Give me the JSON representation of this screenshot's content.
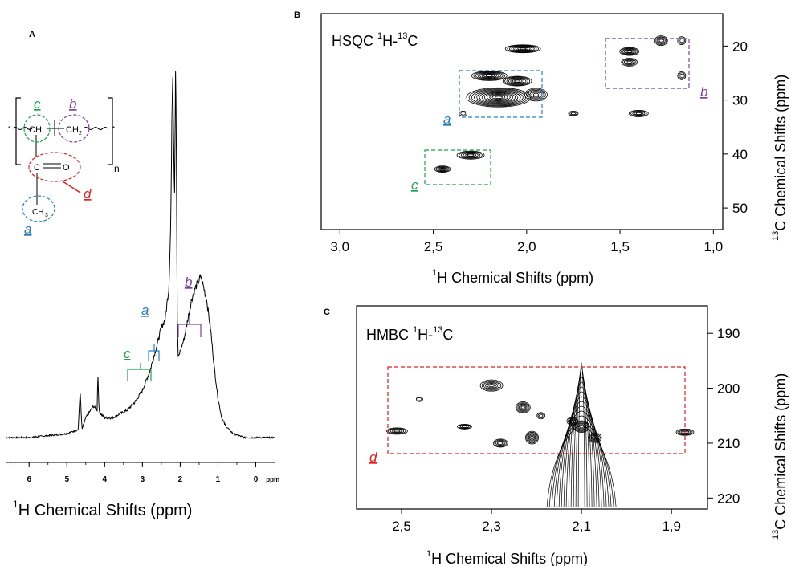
{
  "panel_a": {
    "letter": "A",
    "x_ticks": [
      "6",
      "5",
      "4",
      "3",
      "2",
      "1",
      "0",
      "ppm"
    ],
    "xlabel_sup": "1",
    "xlabel": "H Chemical Shifts (ppm)",
    "assign_a": "a",
    "assign_b": "b",
    "assign_c": "c",
    "structure": {
      "ch": "CH",
      "ch2": "CH",
      "ch2_sub": "2",
      "c": "C",
      "o": "O",
      "ch3": "CH",
      "ch3_sub": "3",
      "n": "n",
      "label_a": "a",
      "label_b": "b",
      "label_c": "c",
      "label_d": "d"
    }
  },
  "panel_b": {
    "letter": "B",
    "title_pre": "HSQC ",
    "title_sup1": "1",
    "title_mid": "H-",
    "title_sup2": "13",
    "title_post": "C",
    "x_ticks": [
      "3,0",
      "2,5",
      "2,0",
      "1,5",
      "1,0"
    ],
    "y_ticks": [
      "20",
      "30",
      "40",
      "50"
    ],
    "xlabel_sup": "1",
    "xlabel": "H Chemical Shifts (ppm)",
    "ylabel_sup": "13",
    "ylabel": "C Chemical Shifts (ppm)",
    "box_a": "a",
    "box_b": "b",
    "box_c": "c"
  },
  "panel_c": {
    "letter": "C",
    "title_pre": "HMBC ",
    "title_sup1": "1",
    "title_mid": "H-",
    "title_sup2": "13",
    "title_post": "C",
    "x_ticks": [
      "2,5",
      "2,3",
      "2,1",
      "1,9"
    ],
    "y_ticks": [
      "190",
      "200",
      "210",
      "220"
    ],
    "xlabel_sup": "1",
    "xlabel": "H Chemical Shifts (ppm)",
    "ylabel_sup": "13",
    "ylabel": "C Chemical Shifts (ppm)",
    "box_d": "d"
  },
  "colors": {
    "a": "#2a7fc0",
    "b": "#7b3f9e",
    "c": "#1aa54b",
    "d": "#e02020",
    "line": "#000000"
  },
  "chart_data": [
    {
      "type": "line",
      "panel": "A",
      "xlabel": "1H Chemical Shifts (ppm)",
      "xlim": [
        6.6,
        -0.5
      ],
      "x_reversed": true,
      "series": [
        {
          "x": [
            6.6,
            6.0,
            5.5,
            5.0,
            4.7,
            4.65,
            4.6,
            4.5,
            4.3,
            4.2,
            4.18,
            4.15,
            4.1,
            4.0,
            3.8,
            3.6,
            3.4,
            3.2,
            3.0,
            2.8,
            2.6,
            2.5,
            2.4,
            2.3,
            2.25,
            2.2,
            2.15,
            2.12,
            2.1,
            2.08,
            2.05,
            2.0,
            1.9,
            1.8,
            1.7,
            1.6,
            1.5,
            1.45,
            1.4,
            1.3,
            1.2,
            1.1,
            1.0,
            0.9,
            0.8,
            0.6,
            0.3,
            0.0,
            -0.5
          ],
          "y": [
            0.0,
            0.0,
            0.005,
            0.01,
            0.02,
            0.12,
            0.02,
            0.05,
            0.08,
            0.07,
            0.17,
            0.07,
            0.06,
            0.05,
            0.05,
            0.06,
            0.07,
            0.09,
            0.12,
            0.17,
            0.24,
            0.28,
            0.3,
            0.38,
            0.55,
            0.95,
            0.6,
            0.99,
            0.7,
            0.3,
            0.2,
            0.22,
            0.25,
            0.3,
            0.35,
            0.38,
            0.4,
            0.41,
            0.39,
            0.35,
            0.28,
            0.18,
            0.1,
            0.05,
            0.03,
            0.01,
            0.0,
            0.0,
            0.0
          ]
        }
      ]
    },
    {
      "type": "scatter",
      "panel": "B",
      "title": "HSQC 1H-13C",
      "xlabel": "1H Chemical Shifts (ppm)",
      "ylabel": "13C Chemical Shifts (ppm)",
      "xlim": [
        3.1,
        0.95
      ],
      "ylim": [
        14,
        54
      ],
      "x_reversed": true,
      "points": [
        {
          "x": 2.02,
          "y": 20.5
        },
        {
          "x": 2.2,
          "y": 25.5
        },
        {
          "x": 2.05,
          "y": 26.5
        },
        {
          "x": 2.15,
          "y": 29.5
        },
        {
          "x": 1.95,
          "y": 29.0
        },
        {
          "x": 2.34,
          "y": 32.5
        },
        {
          "x": 1.75,
          "y": 32.5
        },
        {
          "x": 1.4,
          "y": 32.5
        },
        {
          "x": 1.45,
          "y": 21.0
        },
        {
          "x": 1.28,
          "y": 19.0
        },
        {
          "x": 1.45,
          "y": 23.0
        },
        {
          "x": 1.17,
          "y": 19.0
        },
        {
          "x": 1.17,
          "y": 25.5
        },
        {
          "x": 2.3,
          "y": 40.2
        },
        {
          "x": 2.45,
          "y": 42.8
        }
      ]
    },
    {
      "type": "scatter",
      "panel": "C",
      "title": "HMBC 1H-13C",
      "xlabel": "1H Chemical Shifts (ppm)",
      "ylabel": "13C Chemical Shifts (ppm)",
      "xlim": [
        2.6,
        1.82
      ],
      "ylim": [
        185,
        222
      ],
      "x_reversed": true,
      "points": [
        {
          "x": 2.51,
          "y": 207.8
        },
        {
          "x": 2.46,
          "y": 202.0
        },
        {
          "x": 2.3,
          "y": 199.5
        },
        {
          "x": 2.36,
          "y": 207.0
        },
        {
          "x": 2.23,
          "y": 203.5
        },
        {
          "x": 2.19,
          "y": 205.0
        },
        {
          "x": 2.21,
          "y": 209.0
        },
        {
          "x": 2.28,
          "y": 210.0
        },
        {
          "x": 2.12,
          "y": 206.0
        },
        {
          "x": 2.1,
          "y": 207.0
        },
        {
          "x": 2.07,
          "y": 209.0
        },
        {
          "x": 1.87,
          "y": 208.0
        }
      ]
    }
  ]
}
